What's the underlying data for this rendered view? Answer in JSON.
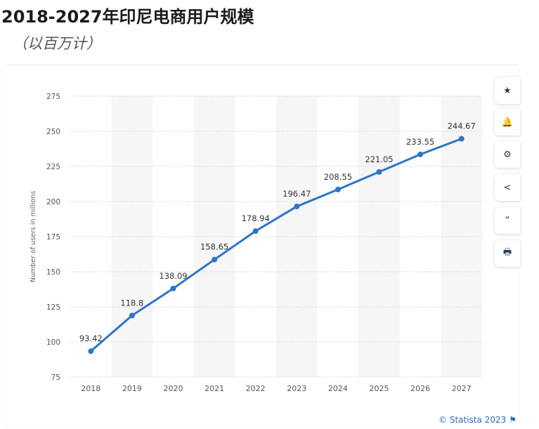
{
  "header": {
    "title": "2018-2027年印尼电商用户规模",
    "subtitle": "（以百万计）"
  },
  "toolbar": {
    "star_icon": "★",
    "bell_icon": "🔔",
    "gear_icon": "⚙",
    "share_icon": "<",
    "quote_icon": "“",
    "print_icon": "🖶"
  },
  "footer": {
    "credit": "© Statista 2023",
    "flag_icon": "⚑"
  },
  "chart_data": {
    "type": "line",
    "title": "2018-2027年印尼电商用户规模",
    "subtitle": "（以百万计）",
    "xlabel": "",
    "ylabel": "Number of users in millions",
    "categories": [
      "2018",
      "2019",
      "2020",
      "2021",
      "2022",
      "2023",
      "2024",
      "2025",
      "2026",
      "2027"
    ],
    "values": [
      93.42,
      118.8,
      138.09,
      158.65,
      178.94,
      196.47,
      208.55,
      221.05,
      233.55,
      244.67
    ],
    "data_labels": [
      "93.42",
      "118.8",
      "138.09",
      "158.65",
      "178.94",
      "196.47",
      "208.55",
      "221.05",
      "233.55",
      "244.67"
    ],
    "ylim": [
      75,
      275
    ],
    "yticks": [
      75,
      100,
      125,
      150,
      175,
      200,
      225,
      250,
      275
    ],
    "grid": true,
    "colors": {
      "line": "#2e75c8",
      "grid": "#c7c7c7",
      "band": "#f6f6f6"
    }
  }
}
